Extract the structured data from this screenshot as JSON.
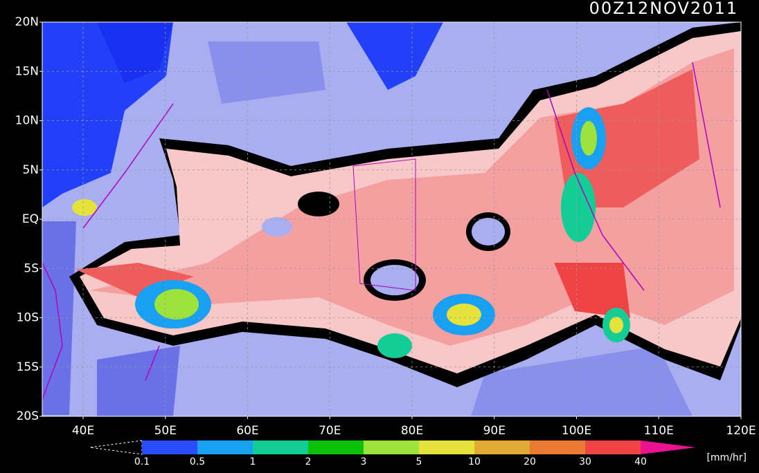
{
  "title": "00Z12NOV2011",
  "map": {
    "lat_labels": [
      "20N",
      "15N",
      "10N",
      "5N",
      "EQ",
      "5S",
      "10S",
      "15S",
      "20S"
    ],
    "lon_labels": [
      "40E",
      "50E",
      "60E",
      "70E",
      "80E",
      "90E",
      "100E",
      "110E",
      "120E"
    ]
  },
  "colorbar": {
    "labels": [
      "0.1",
      "0.5",
      "1",
      "2",
      "3",
      "5",
      "10",
      "20",
      "30",
      "40"
    ],
    "colors": [
      "#2a4cff",
      "#1aa0f2",
      "#14cc96",
      "#0ac20a",
      "#9ee23c",
      "#e6e23c",
      "#e2aa32",
      "#ea7a32",
      "#f04444"
    ],
    "over_color": "#ea1290",
    "unit": "[mm/hr]"
  }
}
